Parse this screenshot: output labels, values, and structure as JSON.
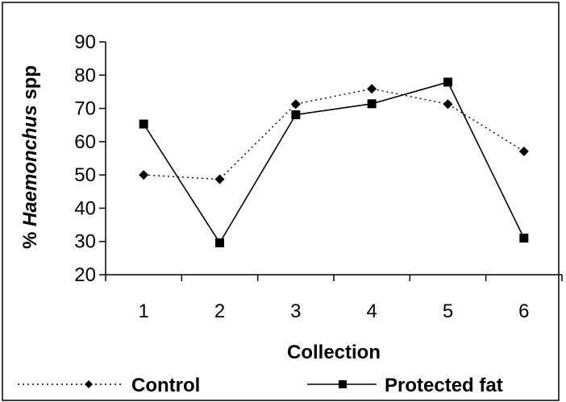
{
  "chart_data": {
    "type": "line",
    "title": "",
    "xlabel": "Collection",
    "ylabel_prefix": "% ",
    "ylabel_italic": "Haemonchus",
    "ylabel_suffix": " spp",
    "categories": [
      "1",
      "2",
      "3",
      "4",
      "5",
      "6"
    ],
    "ylim": [
      20,
      90
    ],
    "yticks": [
      20,
      30,
      40,
      50,
      60,
      70,
      80,
      90
    ],
    "grid": false,
    "legend_position": "bottom",
    "series": [
      {
        "name": "Control",
        "style": "dotted",
        "marker": "diamond",
        "color": "#000000",
        "values": [
          50,
          48.7,
          71.3,
          75.9,
          71.3,
          57.1
        ]
      },
      {
        "name": "Protected fat",
        "style": "solid",
        "marker": "square",
        "color": "#000000",
        "values": [
          65.3,
          29.6,
          68.1,
          71.4,
          77.9,
          31
        ]
      }
    ]
  }
}
